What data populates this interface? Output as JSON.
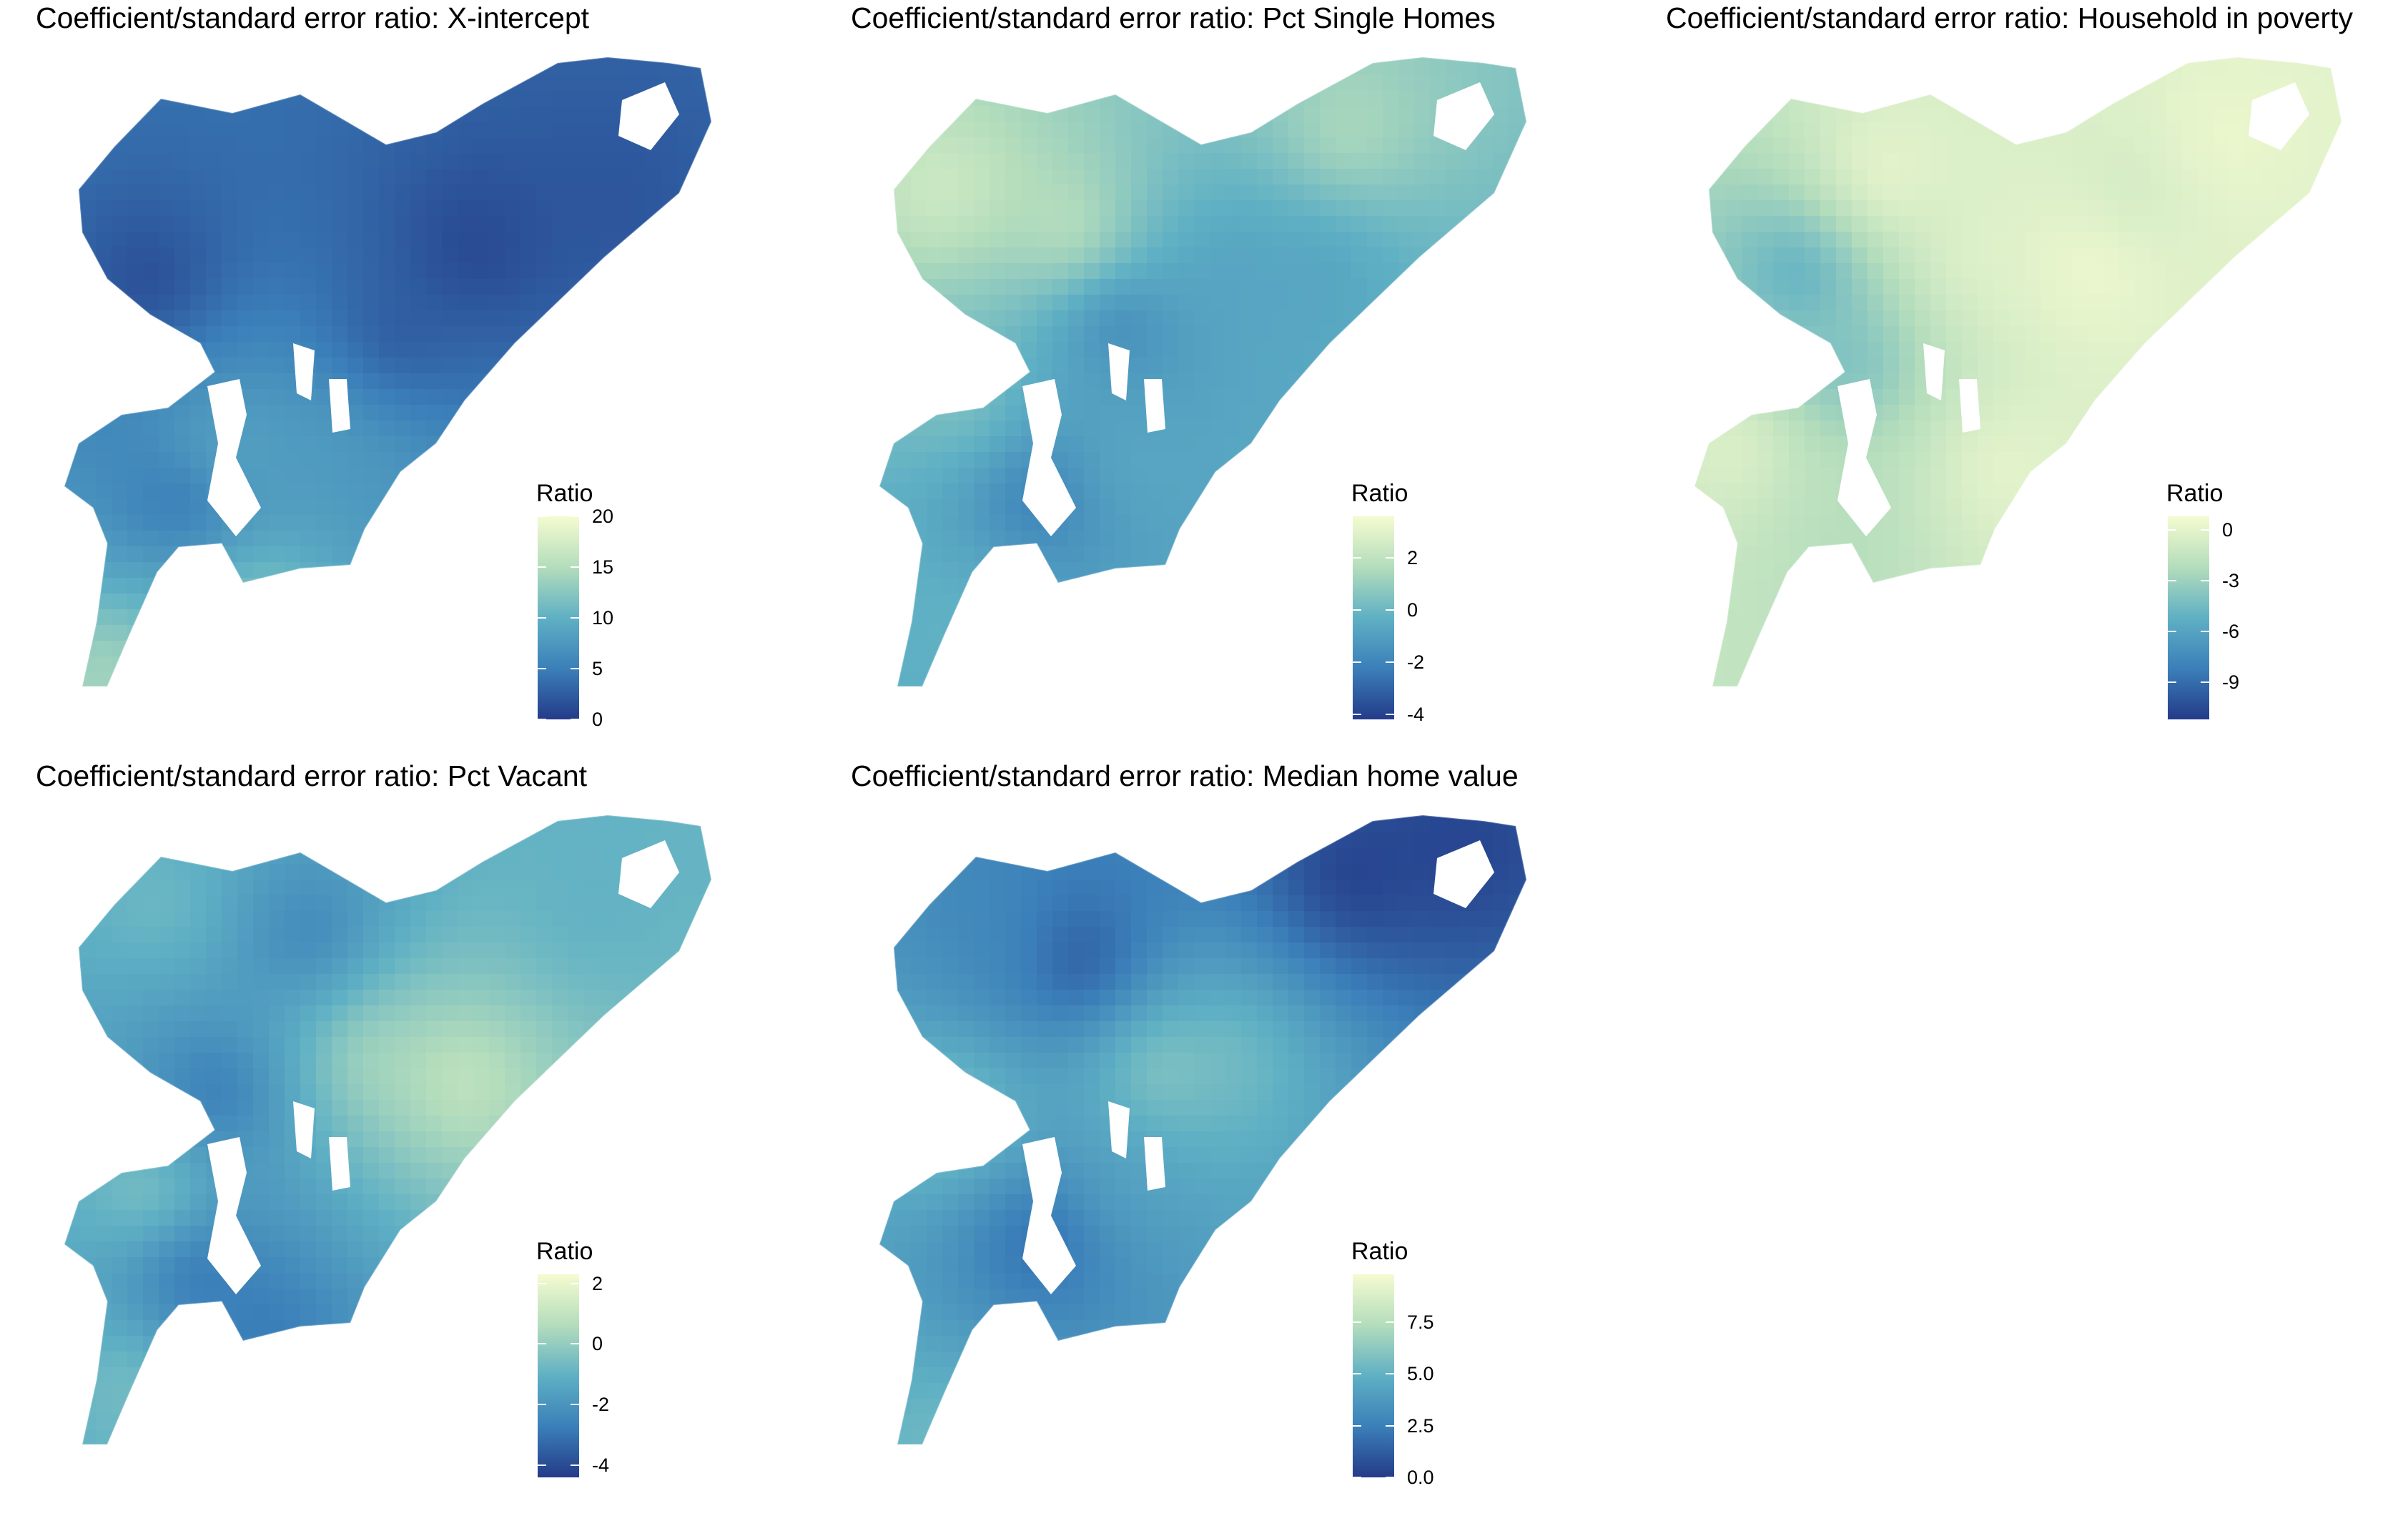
{
  "colors": {
    "low": "#243b89",
    "mid_low": "#3b7fb9",
    "mid": "#5fb0c4",
    "mid_high": "#b4ddbc",
    "high": "#f5fbd0"
  },
  "panels": [
    {
      "title": "Coefficient/standard error ratio: X-intercept",
      "legend_title": "Ratio",
      "scale": {
        "min": 0,
        "max": 20
      },
      "ticks": [
        "20",
        "15",
        "10",
        "5",
        "0"
      ],
      "tick_values": [
        20,
        15,
        10,
        5,
        0
      ],
      "overall_level": 0.35
    },
    {
      "title": "Coefficient/standard error ratio: Pct Single Homes",
      "legend_title": "Ratio",
      "scale": {
        "min": -4.2,
        "max": 3.6
      },
      "ticks": [
        "2",
        "0",
        "-2",
        "-4"
      ],
      "tick_values": [
        2,
        0,
        -2,
        -4
      ],
      "overall_level": 0.55
    },
    {
      "title": "Coefficient/standard error ratio: Household in poverty",
      "legend_title": "Ratio",
      "scale": {
        "min": -11.2,
        "max": 0.8
      },
      "ticks": [
        "0",
        "-3",
        "-6",
        "-9"
      ],
      "tick_values": [
        0,
        -3,
        -6,
        -9
      ],
      "overall_level": 0.7
    },
    {
      "title": "Coefficient/standard error ratio: Pct Vacant",
      "legend_title": "Ratio",
      "scale": {
        "min": -4.4,
        "max": 2.3
      },
      "ticks": [
        "2",
        "0",
        "-2",
        "-4"
      ],
      "tick_values": [
        2,
        0,
        -2,
        -4
      ],
      "overall_level": 0.5
    },
    {
      "title": "Coefficient/standard error ratio: Median home value",
      "legend_title": "Ratio",
      "scale": {
        "min": 0,
        "max": 9.8
      },
      "ticks": [
        "7.5",
        "5.0",
        "2.5",
        "0.0"
      ],
      "tick_values": [
        7.5,
        5.0,
        2.5,
        0.0
      ],
      "overall_level": 0.3
    }
  ]
}
